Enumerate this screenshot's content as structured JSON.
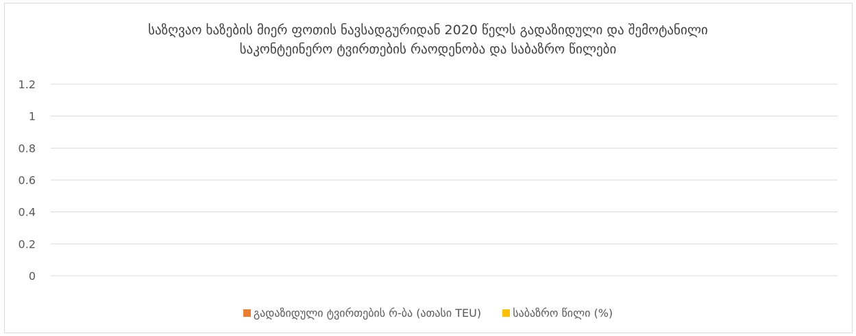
{
  "chart_data": {
    "type": "bar",
    "title_line1": "საზღვაო ხაზების მიერ ფოთის ნავსადგურიდან 2020 წელს გადაზიდული და შემოტანილი",
    "title_line2": "საკონტეინერო ტვირთების რაოდენობა და საბაზრო წილები",
    "categories": [],
    "series": [
      {
        "name": "გადაზიდული ტვირთების რ-ბა (ათასი TEU)",
        "color": "#ed7d31",
        "values": []
      },
      {
        "name": "საბაზრო წილი (%)",
        "color": "#ffc000",
        "values": []
      }
    ],
    "y_ticks": [
      "0",
      "0.2",
      "0.4",
      "0.6",
      "0.8",
      "1",
      "1.2"
    ],
    "ylim": [
      0,
      1.2
    ],
    "grid": true,
    "legend_position": "bottom"
  }
}
